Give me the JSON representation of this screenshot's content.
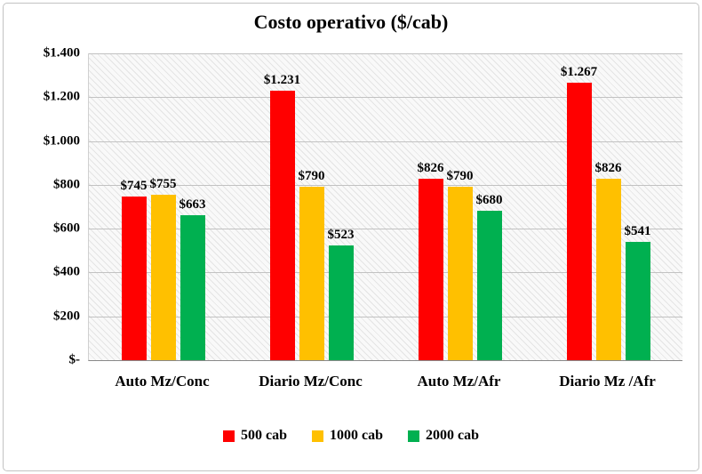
{
  "chart_data": {
    "type": "bar",
    "title": "Costo operativo ($/cab)",
    "categories": [
      "Auto Mz/Conc",
      "Diario Mz/Conc",
      "Auto Mz/Afr",
      "Diario Mz /Afr"
    ],
    "series": [
      {
        "name": "500 cab",
        "color": "#FF0000",
        "values": [
          745,
          1231,
          826,
          1267
        ],
        "labels": [
          "$745",
          "$1.231",
          "$826",
          "$1.267"
        ]
      },
      {
        "name": "1000 cab",
        "color": "#FFC000",
        "values": [
          755,
          790,
          790,
          826
        ],
        "labels": [
          "$755",
          "$790",
          "$790",
          "$826"
        ]
      },
      {
        "name": "2000 cab",
        "color": "#00B050",
        "values": [
          663,
          523,
          680,
          541
        ],
        "labels": [
          "$663",
          "$523",
          "$680",
          "$541"
        ]
      }
    ],
    "ymax": 1400,
    "yticks": [
      {
        "value": 0,
        "label": "$-"
      },
      {
        "value": 200,
        "label": "$200"
      },
      {
        "value": 400,
        "label": "$400"
      },
      {
        "value": 600,
        "label": "$600"
      },
      {
        "value": 800,
        "label": "$800"
      },
      {
        "value": 1000,
        "label": "$1.000"
      },
      {
        "value": 1200,
        "label": "$1.200"
      },
      {
        "value": 1400,
        "label": "$1.400"
      }
    ],
    "legend_position": "bottom",
    "grid": true
  }
}
